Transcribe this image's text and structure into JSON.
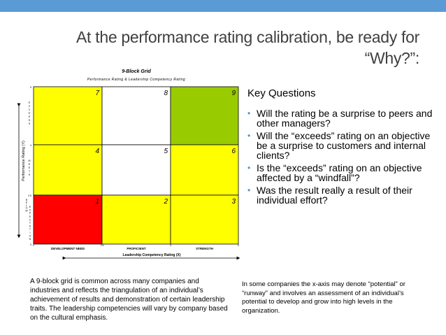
{
  "slide": {
    "title_line1": "At the performance rating calibration, be ready for",
    "title_line2": "“Why?”:",
    "top_bar_color": "#5b9bd5"
  },
  "grid": {
    "title": "9-Block Grid",
    "subtitle": "Performance Rating & Leadership Competency Rating",
    "y_axis_label": "Performance Rating (Y)",
    "x_axis_label": "Leadership Competency Rating (X)",
    "columns": [
      "DEVELOPMENT NEED",
      "PROFICIENT",
      "STRENGTH"
    ],
    "x_ticks": [
      "0",
      "2.5",
      "4",
      "5"
    ],
    "y_ticks": [
      "5",
      "4",
      "2.5",
      "0"
    ],
    "row_letters": [
      [
        "E",
        "X",
        "C",
        "E",
        "E",
        "D",
        "S"
      ],
      [
        "M",
        "E",
        "E",
        "T",
        "S"
      ],
      [
        "B",
        "E",
        "L",
        "O",
        "W",
        "E",
        "X",
        "P",
        "E",
        "C",
        "T",
        "A",
        "T",
        "I",
        "O",
        "N"
      ]
    ],
    "cells": [
      {
        "number": "7",
        "color": "#ffff00"
      },
      {
        "number": "8",
        "color": "#ffffff"
      },
      {
        "number": "9",
        "color": "#99cc00"
      },
      {
        "number": "4",
        "color": "#ffff00"
      },
      {
        "number": "5",
        "color": "#ffffff"
      },
      {
        "number": "6",
        "color": "#ffff00"
      },
      {
        "number": "1",
        "color": "#ff0000"
      },
      {
        "number": "2",
        "color": "#ffff00"
      },
      {
        "number": "3",
        "color": "#ffff00"
      }
    ]
  },
  "key_questions": {
    "heading": "Key Questions",
    "items": [
      "Will the rating be a surprise to peers and other managers?",
      "Will the “exceeds” rating on an objective be a surprise to customers and internal clients?",
      "Is the “exceeds” rating on an objective affected by a “windfall”?",
      "Was the result really a result of their individual effort?"
    ]
  },
  "notes": {
    "left": "A 9-block grid is common across many companies and industries and reflects the triangulation of an individual’s achievement of results and demonstration of certain leadership traits. The leadership competencies will vary by company based on the cultural emphasis.",
    "right": "In some companies the x-axis may denote “potential” or “runway” and involves an assessment of an individual’s potential to develop and grow into high levels in the organization."
  }
}
